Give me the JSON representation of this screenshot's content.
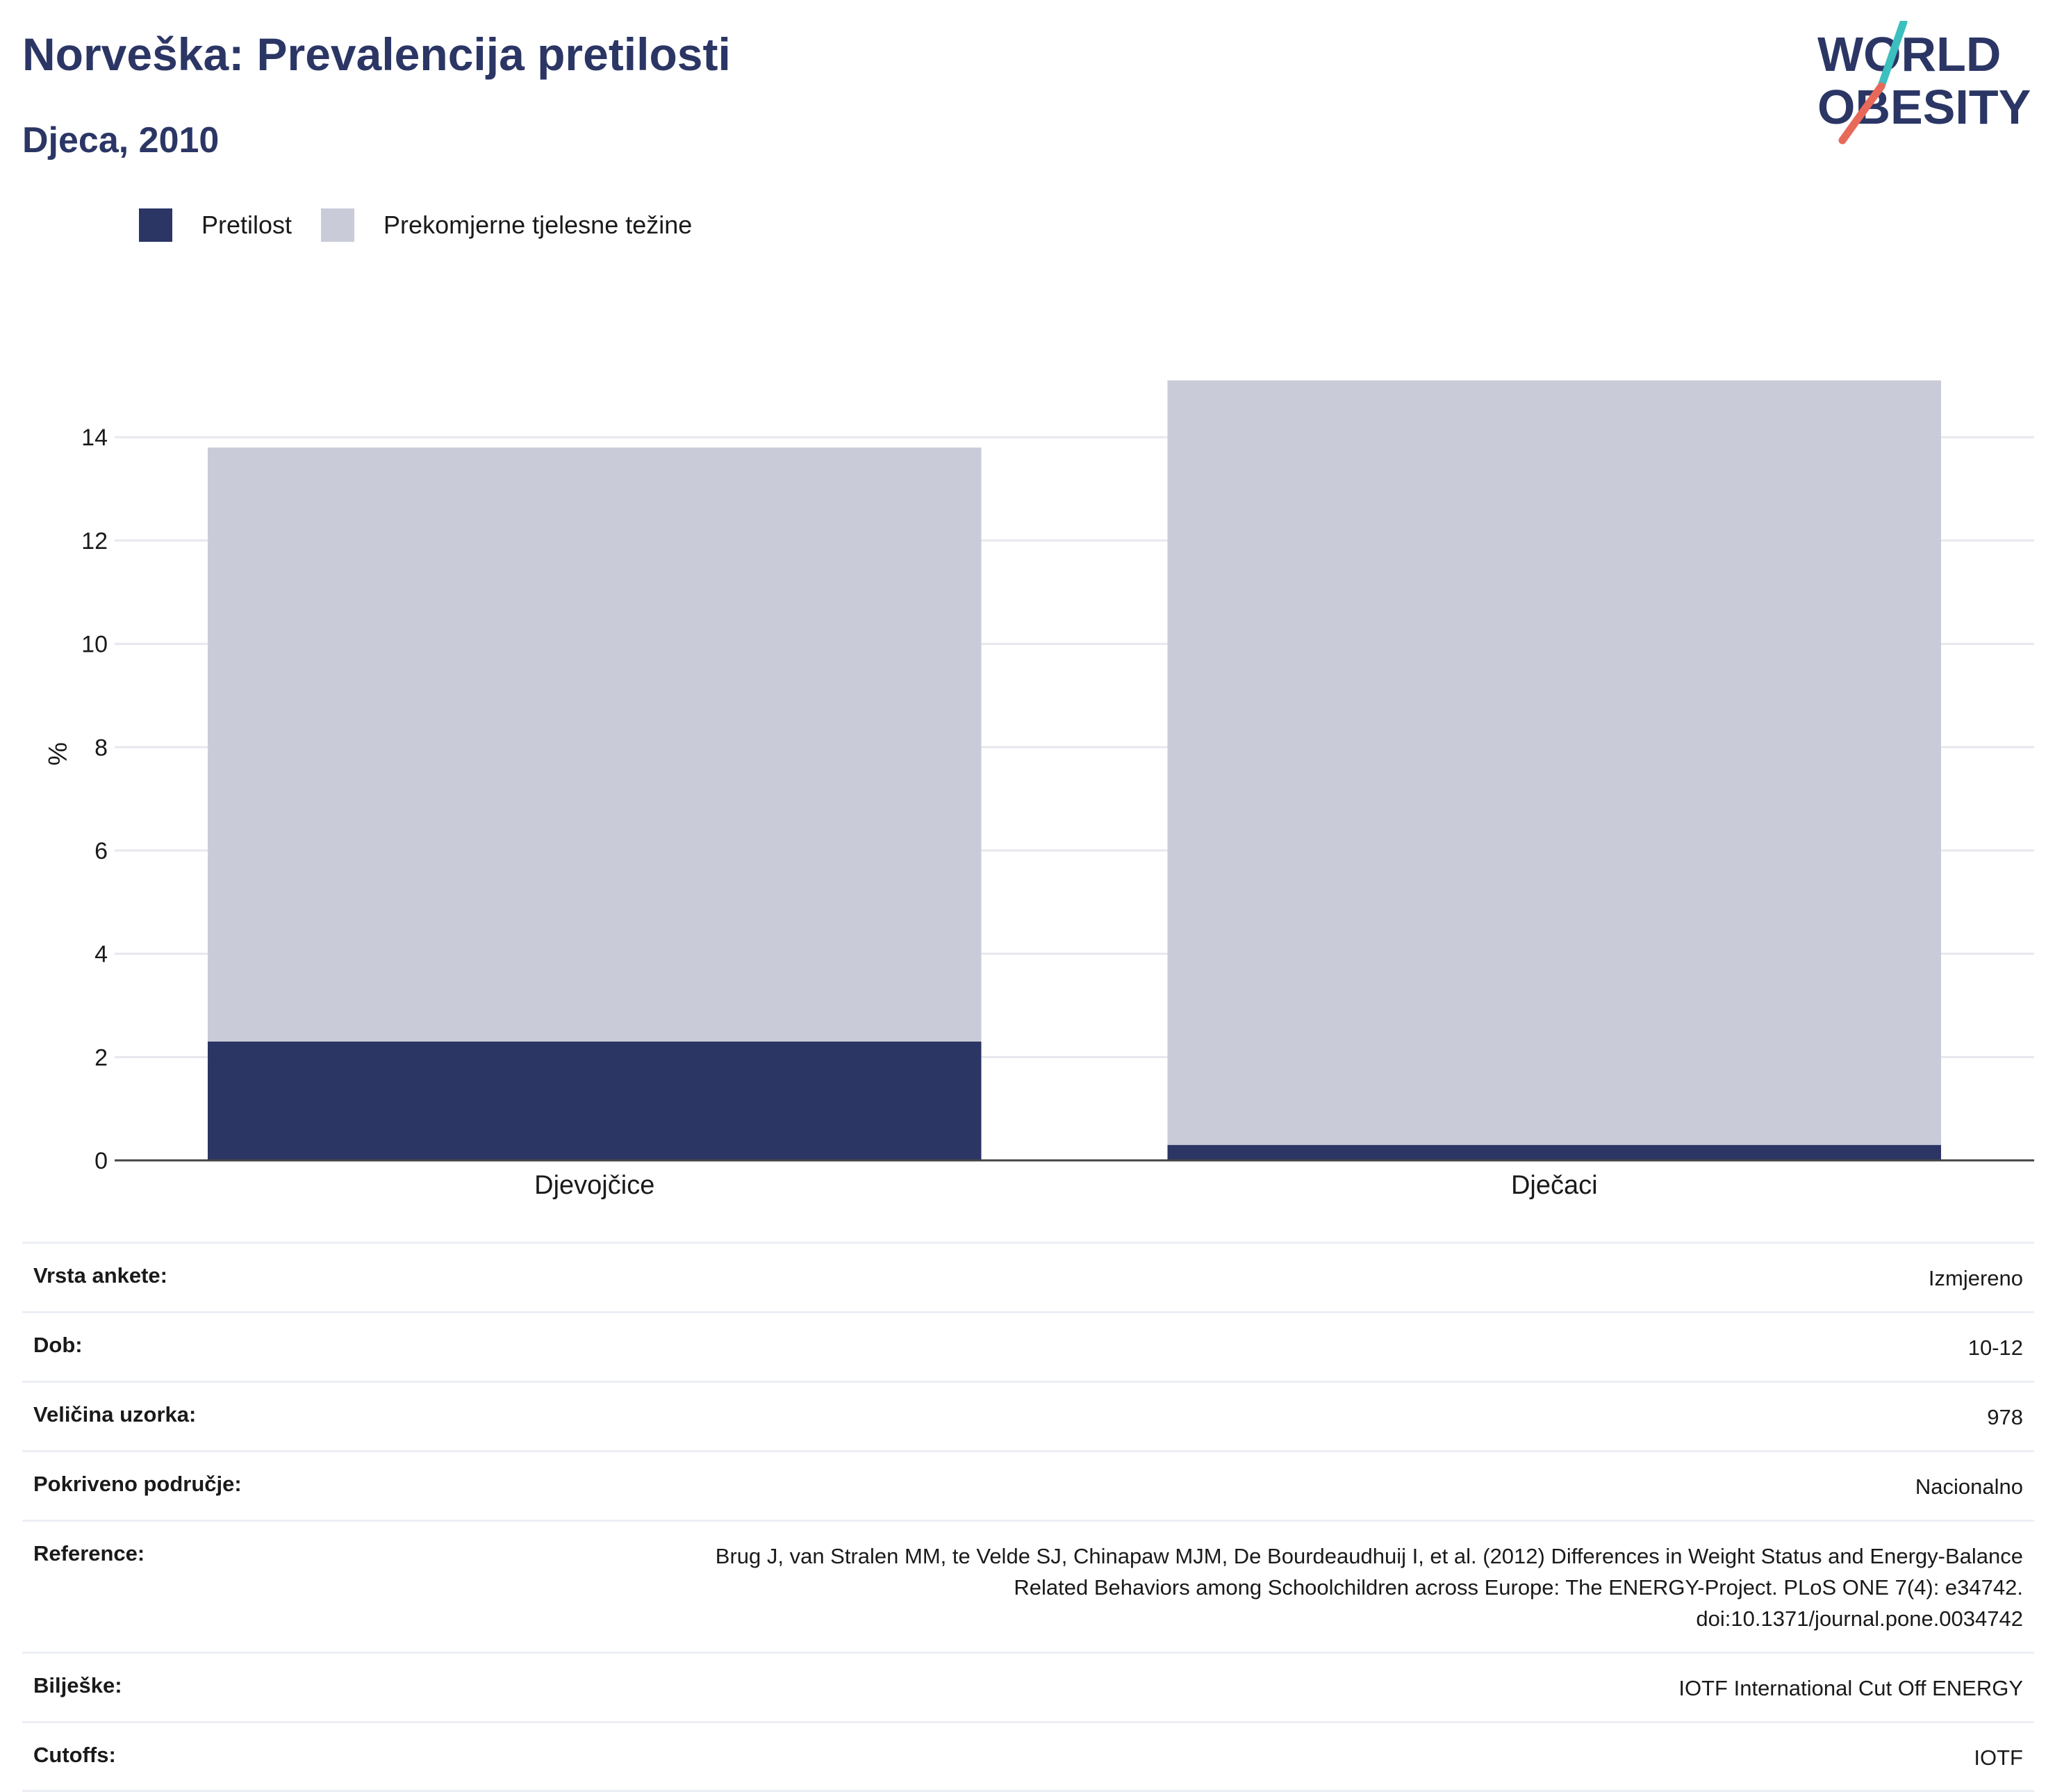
{
  "header": {
    "title": "Norveška: Prevalencija pretilosti",
    "subtitle": "Djeca, 2010"
  },
  "logo": {
    "line1": "WORLD",
    "line2": "OBESITY",
    "colors": {
      "text": "#2b3665",
      "slash_top": "#3bbfbf",
      "slash_bottom": "#e8685a"
    }
  },
  "legend": [
    {
      "label": "Pretilost",
      "color": "#2b3665"
    },
    {
      "label": "Prekomjerne tjelesne težine",
      "color": "#c9ccd8"
    }
  ],
  "chart_data": {
    "type": "bar",
    "stacked": true,
    "categories": [
      "Djevojčice",
      "Dječaci"
    ],
    "series": [
      {
        "name": "Pretilost",
        "color": "#2b3665",
        "values": [
          2.3,
          0.3
        ]
      },
      {
        "name": "Prekomjerne tjelesne težine",
        "color": "#c9ccd8",
        "values": [
          11.5,
          14.8
        ]
      }
    ],
    "ylabel": "%",
    "xlabel": "",
    "ylim": [
      0,
      15.2
    ],
    "yticks": [
      0,
      2,
      4,
      6,
      8,
      10,
      12,
      14
    ],
    "grid": true,
    "legend_position": "top-left"
  },
  "meta": [
    {
      "key": "Vrsta ankete:",
      "value": [
        "Izmjereno"
      ]
    },
    {
      "key": "Dob:",
      "value": [
        "10-12"
      ]
    },
    {
      "key": "Veličina uzorka:",
      "value": [
        "978"
      ]
    },
    {
      "key": "Pokriveno područje:",
      "value": [
        "Nacionalno"
      ]
    },
    {
      "key": "Reference:",
      "value": [
        "Brug J, van Stralen MM, te Velde SJ, Chinapaw MJM, De Bourdeaudhuij I, et al. (2012) Differences in Weight Status and Energy-Balance",
        "Related Behaviors among Schoolchildren across Europe: The ENERGY-Project. PLoS ONE 7(4): e34742.",
        "doi:10.1371/journal.pone.0034742"
      ]
    },
    {
      "key": "Bilješke:",
      "value": [
        "IOTF International Cut Off ENERGY"
      ]
    },
    {
      "key": "Cutoffs:",
      "value": [
        "IOTF"
      ]
    }
  ]
}
